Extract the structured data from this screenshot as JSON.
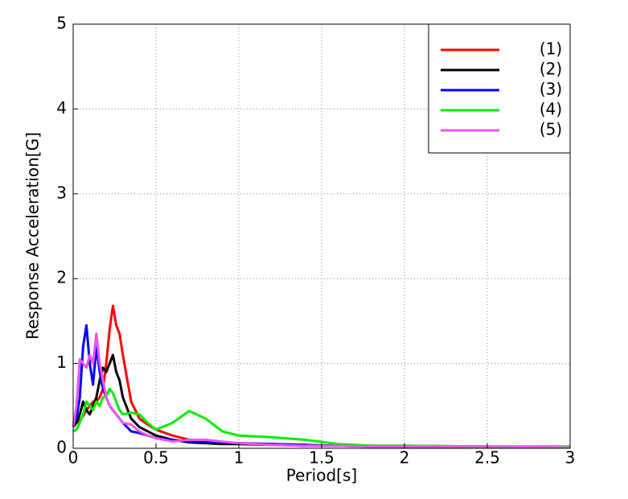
{
  "chart_data": {
    "type": "line",
    "xlabel": "Period[s]",
    "ylabel": "Response Acceleration[G]",
    "x": [
      0,
      0.02,
      0.04,
      0.06,
      0.08,
      0.1,
      0.12,
      0.14,
      0.16,
      0.18,
      0.2,
      0.22,
      0.24,
      0.26,
      0.28,
      0.3,
      0.35,
      0.4,
      0.45,
      0.5,
      0.6,
      0.7,
      0.8,
      0.9,
      1,
      1.2,
      1.4,
      1.6,
      1.8,
      2,
      2.5,
      3
    ],
    "series": [
      {
        "name": "(1)",
        "color": "#ff0000",
        "values": [
          0.28,
          0.3,
          0.33,
          0.38,
          0.45,
          0.5,
          0.55,
          0.55,
          0.6,
          0.7,
          1.0,
          1.4,
          1.68,
          1.45,
          1.35,
          1.1,
          0.55,
          0.35,
          0.28,
          0.22,
          0.15,
          0.1,
          0.08,
          0.07,
          0.06,
          0.05,
          0.04,
          0.03,
          0.03,
          0.03,
          0.02,
          0.02
        ]
      },
      {
        "name": "(2)",
        "color": "#000000",
        "values": [
          0.25,
          0.3,
          0.4,
          0.55,
          0.45,
          0.4,
          0.5,
          0.6,
          0.8,
          0.95,
          0.9,
          1.0,
          1.1,
          0.9,
          0.8,
          0.6,
          0.35,
          0.25,
          0.2,
          0.15,
          0.1,
          0.07,
          0.06,
          0.05,
          0.05,
          0.04,
          0.03,
          0.03,
          0.02,
          0.02,
          0.01,
          0.01
        ]
      },
      {
        "name": "(3)",
        "color": "#0000ff",
        "values": [
          0.3,
          0.35,
          0.6,
          1.2,
          1.45,
          1.0,
          0.75,
          1.2,
          0.9,
          0.7,
          0.6,
          0.5,
          0.45,
          0.4,
          0.35,
          0.3,
          0.2,
          0.18,
          0.15,
          0.12,
          0.1,
          0.08,
          0.08,
          0.07,
          0.06,
          0.05,
          0.04,
          0.03,
          0.03,
          0.02,
          0.02,
          0.01
        ]
      },
      {
        "name": "(4)",
        "color": "#00ee00",
        "values": [
          0.2,
          0.22,
          0.3,
          0.4,
          0.55,
          0.5,
          0.45,
          0.55,
          0.5,
          0.6,
          0.62,
          0.7,
          0.65,
          0.55,
          0.45,
          0.4,
          0.42,
          0.4,
          0.3,
          0.22,
          0.3,
          0.44,
          0.35,
          0.2,
          0.15,
          0.13,
          0.1,
          0.05,
          0.03,
          0.03,
          0.02,
          0.02
        ]
      },
      {
        "name": "(5)",
        "color": "#ee55ee",
        "values": [
          0.25,
          0.5,
          1.05,
          1.0,
          0.95,
          1.1,
          1.0,
          1.35,
          1.0,
          0.8,
          0.6,
          0.5,
          0.45,
          0.4,
          0.35,
          0.3,
          0.28,
          0.2,
          0.15,
          0.12,
          0.08,
          0.1,
          0.1,
          0.08,
          0.06,
          0.04,
          0.03,
          0.03,
          0.02,
          0.02,
          0.02,
          0.01
        ]
      }
    ],
    "xlim": [
      0,
      3
    ],
    "xticks": [
      0,
      0.5,
      1,
      1.5,
      2,
      2.5,
      3
    ],
    "ylim": [
      0,
      5
    ],
    "yticks": [
      0,
      1,
      2,
      3,
      4,
      5
    ],
    "grid": true,
    "legend": "upper right"
  }
}
